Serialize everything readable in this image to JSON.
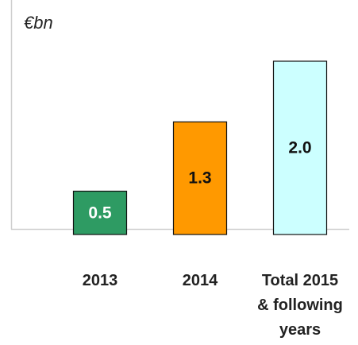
{
  "chart_data": {
    "type": "bar",
    "y_label": "€bn",
    "categories": [
      "2013",
      "2014",
      "Total 2015 & following years"
    ],
    "values": [
      0.5,
      1.3,
      2.0
    ],
    "value_labels": [
      "0.5",
      "1.3",
      "2.0"
    ],
    "colors": [
      "#2e9b63",
      "#ff9900",
      "#ccffff"
    ],
    "ylim": [
      0,
      2.0
    ]
  }
}
